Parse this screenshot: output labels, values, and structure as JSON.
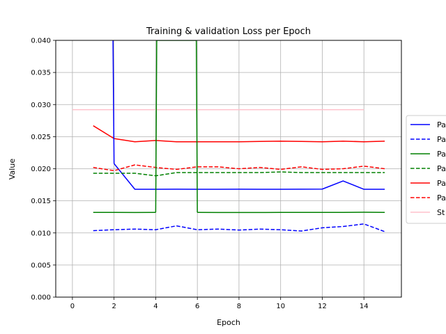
{
  "chart_data": {
    "type": "line",
    "title": "Training & validation Loss per Epoch",
    "xlabel": "Epoch",
    "ylabel": "Value",
    "xlim": [
      -0.8,
      15.8
    ],
    "ylim": [
      0,
      0.04
    ],
    "xticks": [
      "0",
      "2",
      "4",
      "6",
      "8",
      "10",
      "12",
      "14"
    ],
    "yticks": [
      "0.000",
      "0.005",
      "0.010",
      "0.015",
      "0.020",
      "0.025",
      "0.030",
      "0.035",
      "0.040"
    ],
    "grid": true,
    "legend_position": "right",
    "series": [
      {
        "name": "Pa",
        "color": "#0000ff",
        "style": "solid",
        "x": [
          1,
          2,
          3,
          4,
          5,
          6,
          7,
          8,
          9,
          10,
          11,
          12,
          13,
          14,
          15
        ],
        "y": [
          null,
          0.0208,
          0.0168,
          0.0168,
          0.01682,
          0.0168,
          0.0168,
          0.01682,
          0.0168,
          0.0168,
          0.01682,
          0.01683,
          0.0181,
          0.0168,
          0.0168
        ],
        "note_first": "starts above 0.040 at epoch 2"
      },
      {
        "name": "Pa",
        "color": "#0000ff",
        "style": "dashed",
        "x": [
          1,
          2,
          3,
          4,
          5,
          6,
          7,
          8,
          9,
          10,
          11,
          12,
          13,
          14,
          15
        ],
        "y": [
          0.01035,
          0.0105,
          0.0106,
          0.0105,
          0.0111,
          0.0105,
          0.0106,
          0.01045,
          0.0106,
          0.0105,
          0.0103,
          0.0108,
          0.011,
          0.0114,
          0.0102
        ]
      },
      {
        "name": "Pa",
        "color": "#008000",
        "style": "solid",
        "x": [
          1,
          2,
          3,
          4,
          5,
          6,
          7,
          8,
          9,
          10,
          11,
          12,
          13,
          14,
          15
        ],
        "y": [
          0.0132,
          0.0132,
          0.01318,
          0.0132,
          null,
          0.0132,
          0.01318,
          0.01318,
          0.01318,
          0.0132,
          0.0132,
          0.0132,
          0.0132,
          0.01322,
          0.0132
        ]
      },
      {
        "name": "Pa",
        "color": "#008000",
        "style": "dashed",
        "x": [
          1,
          2,
          3,
          4,
          5,
          6,
          7,
          8,
          9,
          10,
          11,
          12,
          13,
          14,
          15
        ],
        "y": [
          0.0193,
          0.0193,
          0.0193,
          0.0189,
          0.0194,
          0.0194,
          0.0194,
          0.0194,
          0.0194,
          0.0195,
          0.0194,
          0.0194,
          0.0194,
          0.0194,
          0.0194
        ]
      },
      {
        "name": "Pa",
        "color": "#ff0000",
        "style": "solid",
        "x": [
          1,
          2,
          3,
          4,
          5,
          6,
          7,
          8,
          9,
          10,
          11,
          12,
          13,
          14,
          15
        ],
        "y": [
          0.0267,
          0.0247,
          0.0242,
          0.0244,
          0.0242,
          0.0242,
          0.0242,
          0.0242,
          0.02425,
          0.0243,
          0.02425,
          0.0242,
          0.0243,
          0.0242,
          0.0243
        ]
      },
      {
        "name": "Pa",
        "color": "#ff0000",
        "style": "dashed",
        "x": [
          1,
          2,
          3,
          4,
          5,
          6,
          7,
          8,
          9,
          10,
          11,
          12,
          13,
          14,
          15
        ],
        "y": [
          0.0202,
          0.0197,
          0.0206,
          0.0202,
          0.0199,
          0.0203,
          0.0203,
          0.02,
          0.0202,
          0.0199,
          0.0203,
          0.0199,
          0.02,
          0.0204,
          0.02
        ]
      },
      {
        "name": "St",
        "color": "#ffc0cb",
        "style": "solid",
        "x": [
          0,
          14
        ],
        "y": [
          0.0292,
          0.0292
        ]
      }
    ],
    "spikes": [
      {
        "series_index": 0,
        "from": [
          1.95,
          0.04
        ],
        "to": [
          2.0,
          0.0208
        ]
      },
      {
        "series_index": 2,
        "from": [
          4.0,
          0.0132
        ],
        "to": [
          4.05,
          0.04
        ]
      },
      {
        "series_index": 2,
        "from": [
          5.95,
          0.04
        ],
        "to": [
          6.0,
          0.0132
        ]
      }
    ]
  }
}
